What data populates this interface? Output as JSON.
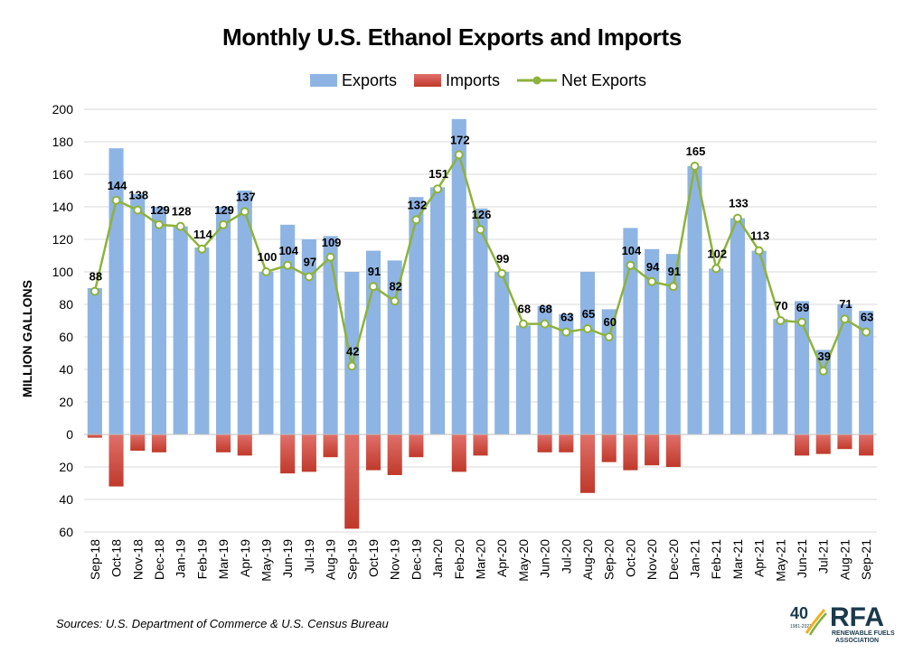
{
  "chart_data": {
    "type": "bar",
    "title": "Monthly U.S. Ethanol Exports and Imports",
    "ylabel": "MILLION GALLONS",
    "xlabel": "",
    "ylim": [
      -60,
      200
    ],
    "ytick_values": [
      -60,
      -40,
      -20,
      0,
      20,
      40,
      60,
      80,
      100,
      120,
      140,
      160,
      180,
      200
    ],
    "ytick_labels": [
      "60",
      "40",
      "20",
      "0",
      "20",
      "40",
      "60",
      "80",
      "100",
      "120",
      "140",
      "160",
      "180",
      "200"
    ],
    "grid": true,
    "legend_position": "top-center",
    "categories": [
      "Sep-18",
      "Oct-18",
      "Nov-18",
      "Dec-18",
      "Jan-19",
      "Feb-19",
      "Mar-19",
      "Apr-19",
      "May-19",
      "Jun-19",
      "Jul-19",
      "Aug-19",
      "Sep-19",
      "Oct-19",
      "Nov-19",
      "Dec-19",
      "Jan-20",
      "Feb-20",
      "Mar-20",
      "Apr-20",
      "May-20",
      "Jun-20",
      "Jul-20",
      "Aug-20",
      "Sep-20",
      "Oct-20",
      "Nov-20",
      "Dec-20",
      "Jan-21",
      "Feb-21",
      "Mar-21",
      "Apr-21",
      "May-21",
      "Jun-21",
      "Jul-21",
      "Aug-21",
      "Sep-21"
    ],
    "series": [
      {
        "name": "Exports",
        "kind": "bar",
        "color": "#8eb4e3",
        "values": [
          90,
          176,
          148,
          140,
          128,
          115,
          140,
          150,
          100,
          129,
          120,
          122,
          100,
          113,
          107,
          146,
          152,
          194,
          139,
          100,
          67,
          79,
          74,
          100,
          77,
          127,
          114,
          111,
          165,
          102,
          133,
          113,
          71,
          82,
          52,
          80,
          76
        ]
      },
      {
        "name": "Imports",
        "kind": "bar",
        "color": "#c0392b",
        "values": [
          -2,
          -32,
          -10,
          -11,
          0,
          0,
          -11,
          -13,
          0,
          -24,
          -23,
          -14,
          -58,
          -22,
          -25,
          -14,
          0,
          -23,
          -13,
          0,
          0,
          -11,
          -11,
          -36,
          -17,
          -22,
          -19,
          -20,
          0,
          0,
          0,
          0,
          0,
          -13,
          -12,
          -9,
          -13
        ]
      },
      {
        "name": "Net Exports",
        "kind": "line",
        "color": "#8db23c",
        "values": [
          88,
          144,
          138,
          129,
          128,
          114,
          129,
          137,
          100,
          104,
          97,
          109,
          42,
          91,
          82,
          132,
          151,
          172,
          126,
          99,
          68,
          68,
          63,
          65,
          60,
          104,
          94,
          91,
          165,
          102,
          133,
          113,
          70,
          69,
          39,
          71,
          63
        ]
      }
    ]
  },
  "source": "Sources: U.S. Department of Commerce & U.S. Census Bureau",
  "logo": {
    "anniversary": "40",
    "years_text": "1981-2021",
    "acronym": "RFA",
    "line1": "RENEWABLE FUELS",
    "line2": "ASSOCIATION"
  }
}
